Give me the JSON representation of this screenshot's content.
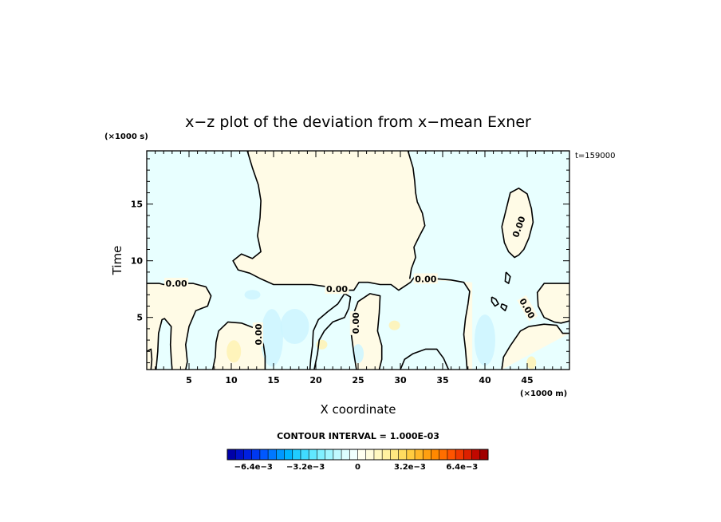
{
  "chart_data": {
    "type": "heatmap",
    "title": "x−z plot of the deviation from x−mean Exner",
    "xlabel": "X coordinate",
    "ylabel": "Time",
    "x_unit": "(×1000 m)",
    "y_unit": "(×1000 s)",
    "time_stamp": "t=159000",
    "xlim": [
      0,
      50
    ],
    "ylim": [
      0.4,
      19.7
    ],
    "x_ticks": [
      5,
      10,
      15,
      20,
      25,
      30,
      35,
      40,
      45
    ],
    "y_ticks": [
      5,
      10,
      15
    ],
    "contour_interval_text": "CONTOUR INTERVAL = 1.000E-03",
    "contour_level": 0,
    "contour_labels": [
      {
        "text": "0.00",
        "x": 3.5,
        "y": 8.0,
        "angle": 0
      },
      {
        "text": "0.00",
        "x": 22.5,
        "y": 7.5,
        "angle": 0
      },
      {
        "text": "0.00",
        "x": 33.0,
        "y": 8.4,
        "angle": 0
      },
      {
        "text": "0.00",
        "x": 13.2,
        "y": 3.5,
        "angle": -90
      },
      {
        "text": "0.00",
        "x": 24.7,
        "y": 4.5,
        "angle": -90
      },
      {
        "text": "0.00",
        "x": 44.0,
        "y": 13.0,
        "angle": -70
      },
      {
        "text": "0.00",
        "x": 45.0,
        "y": 5.8,
        "angle": 60
      }
    ],
    "contours": [
      [
        [
          11.9,
          19.7
        ],
        [
          12.5,
          18.2
        ],
        [
          13.2,
          16.7
        ],
        [
          13.5,
          15.3
        ],
        [
          13.4,
          13.8
        ],
        [
          13.1,
          12.2
        ],
        [
          13.5,
          10.8
        ],
        [
          12.5,
          10.2
        ],
        [
          11.2,
          10.6
        ],
        [
          10.2,
          10.0
        ],
        [
          10.8,
          9.2
        ],
        [
          12.2,
          8.9
        ],
        [
          13.5,
          8.4
        ],
        [
          15.0,
          7.9
        ],
        [
          17.0,
          7.9
        ],
        [
          19.5,
          7.9
        ],
        [
          21.5,
          7.7
        ],
        [
          23.8,
          7.4
        ],
        [
          24.5,
          7.4
        ],
        [
          25.1,
          8.1
        ],
        [
          26.2,
          8.1
        ],
        [
          27.6,
          7.9
        ],
        [
          28.9,
          7.9
        ],
        [
          29.8,
          7.4
        ],
        [
          31.2,
          8.1
        ],
        [
          31.7,
          8.6
        ],
        [
          32.9,
          8.4
        ],
        [
          34.5,
          8.4
        ],
        [
          36.0,
          8.3
        ],
        [
          37.5,
          8.1
        ],
        [
          38.2,
          7.3
        ],
        [
          38.0,
          6.2
        ],
        [
          37.7,
          4.9
        ],
        [
          37.5,
          3.5
        ],
        [
          37.7,
          2.2
        ],
        [
          37.9,
          0.4
        ]
      ],
      [
        [
          30.9,
          19.7
        ],
        [
          31.5,
          18.2
        ],
        [
          31.7,
          17.0
        ],
        [
          31.8,
          16.0
        ],
        [
          32.0,
          15.2
        ],
        [
          32.6,
          14.2
        ],
        [
          32.9,
          13.1
        ],
        [
          32.2,
          12.1
        ],
        [
          31.6,
          11.2
        ],
        [
          31.8,
          10.3
        ],
        [
          31.3,
          9.3
        ],
        [
          31.1,
          8.4
        ]
      ],
      [
        [
          0.0,
          8.0
        ],
        [
          1.5,
          8.0
        ],
        [
          2.0,
          7.9
        ],
        [
          3.5,
          8.0
        ],
        [
          5.5,
          8.0
        ],
        [
          7.0,
          7.7
        ],
        [
          7.6,
          6.9
        ],
        [
          7.2,
          6.0
        ],
        [
          5.8,
          5.6
        ],
        [
          5.0,
          4.2
        ],
        [
          4.6,
          2.6
        ],
        [
          4.8,
          1.1
        ],
        [
          4.6,
          0.4
        ]
      ],
      [
        [
          0.0,
          2.0
        ],
        [
          0.5,
          2.2
        ],
        [
          0.6,
          1.3
        ],
        [
          0.5,
          0.4
        ]
      ],
      [
        [
          1.1,
          0.4
        ],
        [
          1.3,
          2.0
        ],
        [
          1.4,
          3.6
        ],
        [
          1.8,
          4.8
        ],
        [
          2.1,
          4.9
        ],
        [
          2.9,
          4.2
        ],
        [
          2.8,
          2.6
        ],
        [
          2.9,
          1.4
        ],
        [
          3.0,
          0.4
        ]
      ],
      [
        [
          7.8,
          0.4
        ],
        [
          8.1,
          1.5
        ],
        [
          8.2,
          2.8
        ],
        [
          8.5,
          3.8
        ],
        [
          9.6,
          4.6
        ],
        [
          11.2,
          4.5
        ],
        [
          12.6,
          4.1
        ],
        [
          13.3,
          3.5
        ],
        [
          13.8,
          2.6
        ],
        [
          14.0,
          1.6
        ],
        [
          14.0,
          0.4
        ]
      ],
      [
        [
          19.8,
          0.4
        ],
        [
          20.2,
          1.8
        ],
        [
          20.4,
          3.0
        ],
        [
          21.0,
          3.8
        ],
        [
          22.0,
          4.6
        ],
        [
          23.4,
          5.0
        ],
        [
          23.9,
          5.8
        ],
        [
          24.1,
          6.8
        ],
        [
          23.4,
          7.1
        ],
        [
          22.6,
          6.2
        ],
        [
          21.4,
          5.5
        ],
        [
          20.3,
          4.8
        ],
        [
          19.7,
          3.8
        ],
        [
          19.6,
          2.5
        ],
        [
          19.4,
          1.3
        ],
        [
          19.3,
          0.4
        ]
      ],
      [
        [
          24.8,
          0.4
        ],
        [
          24.5,
          1.8
        ],
        [
          24.2,
          3.5
        ],
        [
          24.4,
          5.2
        ],
        [
          25.0,
          6.4
        ],
        [
          26.4,
          7.1
        ],
        [
          27.6,
          6.9
        ],
        [
          27.5,
          5.4
        ],
        [
          27.3,
          3.8
        ],
        [
          27.8,
          2.5
        ],
        [
          27.8,
          1.3
        ],
        [
          27.5,
          0.4
        ]
      ],
      [
        [
          30.0,
          0.4
        ],
        [
          30.5,
          1.3
        ],
        [
          31.5,
          1.8
        ],
        [
          33.0,
          2.2
        ],
        [
          34.3,
          2.2
        ],
        [
          35.1,
          1.4
        ],
        [
          35.7,
          0.4
        ]
      ],
      [
        [
          42.0,
          13.0
        ],
        [
          42.5,
          14.5
        ],
        [
          43.0,
          16.0
        ],
        [
          44.0,
          16.4
        ],
        [
          45.0,
          15.9
        ],
        [
          45.5,
          14.6
        ],
        [
          45.7,
          13.4
        ],
        [
          45.2,
          12.0
        ],
        [
          44.6,
          11.0
        ],
        [
          44.0,
          10.5
        ],
        [
          43.5,
          10.3
        ],
        [
          42.8,
          10.8
        ],
        [
          42.3,
          11.6
        ],
        [
          42.0,
          13.0
        ]
      ],
      [
        [
          42.5,
          9.0
        ],
        [
          43.0,
          8.6
        ],
        [
          42.8,
          8.0
        ],
        [
          42.4,
          8.2
        ],
        [
          42.5,
          9.0
        ]
      ],
      [
        [
          40.8,
          6.8
        ],
        [
          41.3,
          6.6
        ],
        [
          41.6,
          6.2
        ],
        [
          41.2,
          6.0
        ],
        [
          40.8,
          6.4
        ],
        [
          40.8,
          6.8
        ]
      ],
      [
        [
          42.0,
          6.2
        ],
        [
          42.6,
          6.0
        ],
        [
          42.4,
          5.6
        ],
        [
          41.9,
          5.9
        ],
        [
          42.0,
          6.2
        ]
      ],
      [
        [
          50.0,
          8.0
        ],
        [
          48.5,
          8.0
        ],
        [
          47.0,
          8.0
        ],
        [
          46.2,
          7.2
        ],
        [
          46.3,
          6.0
        ],
        [
          47.0,
          5.0
        ],
        [
          48.2,
          4.6
        ],
        [
          49.0,
          4.5
        ],
        [
          50.0,
          4.7
        ]
      ],
      [
        [
          42.0,
          0.4
        ],
        [
          42.2,
          1.5
        ],
        [
          43.0,
          2.5
        ],
        [
          44.2,
          3.8
        ],
        [
          45.2,
          4.2
        ],
        [
          47.0,
          4.4
        ],
        [
          48.5,
          4.3
        ],
        [
          49.2,
          3.6
        ],
        [
          50.0,
          3.6
        ]
      ]
    ],
    "colorbar": {
      "min": -0.008,
      "max": 0.008,
      "tick_values": [
        -0.0064,
        -0.0032,
        0,
        0.0032,
        0.0064
      ],
      "tick_labels": [
        "−6.4e−3",
        "−3.2e−3",
        "0",
        "3.2e−3",
        "6.4e−3"
      ]
    },
    "colors": {
      "positive_fill": "#fffbe6",
      "negative_fill": "#e8ffff",
      "negative_patch": "#ccf5ff",
      "positive_patch": "#fff2b3",
      "contour": "#000000"
    }
  }
}
